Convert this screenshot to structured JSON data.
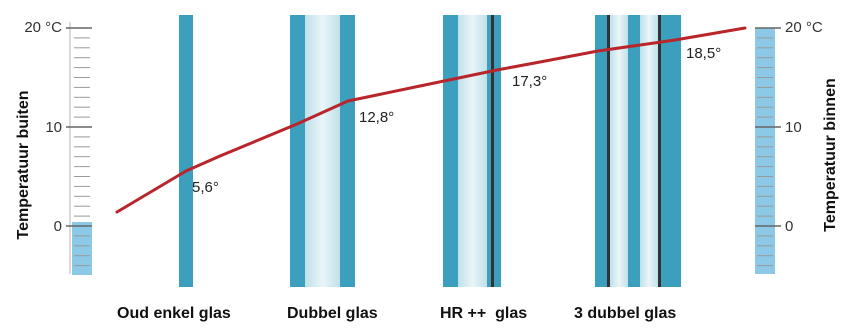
{
  "left_axis": {
    "title": "Temperatuur buiten",
    "ticks": [
      "20 °C",
      "10",
      "0"
    ]
  },
  "right_axis": {
    "title": "Temperatuur binnen",
    "ticks": [
      "20 °C",
      "10",
      "0"
    ]
  },
  "glazing": [
    {
      "label": "Oud enkel glas"
    },
    {
      "label": "Dubbel glas"
    },
    {
      "label": "HR ++  glas"
    },
    {
      "label": "3 dubbel glas"
    }
  ],
  "temperature_labels": [
    "5,6°",
    "12,8°",
    "17,3°",
    "18,5°"
  ],
  "colors": {
    "glass_blue": "#3d9fbe",
    "glass_light": "#cfe6ee",
    "curve": "#b8252b",
    "thermo_fill": "#8cc9e6",
    "tick": "#9a9a9a"
  }
}
